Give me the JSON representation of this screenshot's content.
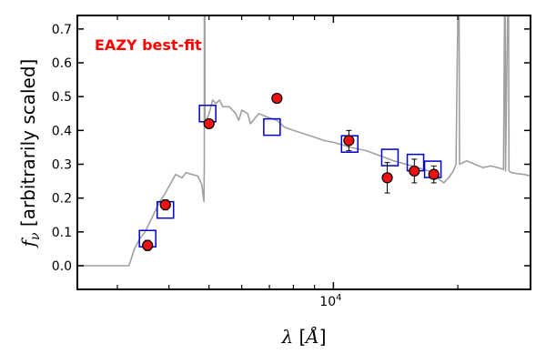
{
  "chart_data": {
    "type": "scatter",
    "title": "",
    "xlabel": "λ [Å]",
    "ylabel": "f_ν [arbitrarily scaled]",
    "x_scale": "log",
    "xlim": [
      2400,
      30000
    ],
    "ylim": [
      -0.07,
      0.74
    ],
    "x_tick_labels": [
      {
        "value": 10000,
        "label": "10^4"
      }
    ],
    "y_ticks": [
      0.0,
      0.1,
      0.2,
      0.3,
      0.4,
      0.5,
      0.6,
      0.7
    ],
    "y_tick_labels": [
      "0.0",
      "0.1",
      "0.2",
      "0.3",
      "0.4",
      "0.5",
      "0.6",
      "0.7"
    ],
    "grid": false,
    "annotations": [
      {
        "text": "EAZY best-fit",
        "color": "#ff0000"
      }
    ],
    "colors": {
      "template": "#a0a0a0",
      "model": "#0000cc",
      "observed_fill": "#ee1111",
      "observed_edge": "#000000"
    },
    "series": [
      {
        "role": "template",
        "style": "line",
        "points": [
          [
            2400,
            0.0
          ],
          [
            3200,
            0.0
          ],
          [
            3300,
            0.05
          ],
          [
            3400,
            0.08
          ],
          [
            3500,
            0.1
          ],
          [
            3600,
            0.13
          ],
          [
            3700,
            0.16
          ],
          [
            3800,
            0.19
          ],
          [
            3900,
            0.21
          ],
          [
            4000,
            0.235
          ],
          [
            4150,
            0.27
          ],
          [
            4300,
            0.26
          ],
          [
            4400,
            0.275
          ],
          [
            4550,
            0.27
          ],
          [
            4700,
            0.265
          ],
          [
            4800,
            0.24
          ],
          [
            4860,
            0.19
          ],
          [
            4870,
            0.3
          ],
          [
            4870,
            0.74
          ],
          [
            4885,
            0.74
          ],
          [
            4890,
            0.42
          ],
          [
            5000,
            0.45
          ],
          [
            5100,
            0.49
          ],
          [
            5200,
            0.48
          ],
          [
            5300,
            0.49
          ],
          [
            5400,
            0.47
          ],
          [
            5600,
            0.47
          ],
          [
            5800,
            0.45
          ],
          [
            5900,
            0.43
          ],
          [
            6000,
            0.46
          ],
          [
            6200,
            0.45
          ],
          [
            6300,
            0.42
          ],
          [
            6600,
            0.45
          ],
          [
            6900,
            0.44
          ],
          [
            7300,
            0.43
          ],
          [
            7600,
            0.41
          ],
          [
            8000,
            0.4
          ],
          [
            8500,
            0.39
          ],
          [
            9000,
            0.38
          ],
          [
            9500,
            0.37
          ],
          [
            10000,
            0.365
          ],
          [
            11000,
            0.35
          ],
          [
            12000,
            0.34
          ],
          [
            13000,
            0.325
          ],
          [
            14000,
            0.31
          ],
          [
            15000,
            0.3
          ],
          [
            16000,
            0.29
          ],
          [
            17000,
            0.28
          ],
          [
            17800,
            0.26
          ],
          [
            18500,
            0.245
          ],
          [
            19000,
            0.26
          ],
          [
            19500,
            0.28
          ],
          [
            19800,
            0.3
          ],
          [
            20000,
            0.74
          ],
          [
            20150,
            0.74
          ],
          [
            20200,
            0.3
          ],
          [
            21000,
            0.31
          ],
          [
            22000,
            0.3
          ],
          [
            23000,
            0.29
          ],
          [
            24000,
            0.295
          ],
          [
            25000,
            0.29
          ],
          [
            25800,
            0.285
          ],
          [
            25950,
            0.74
          ],
          [
            26050,
            0.74
          ],
          [
            26100,
            0.28
          ],
          [
            26400,
            0.74
          ],
          [
            26550,
            0.74
          ],
          [
            26600,
            0.28
          ],
          [
            27000,
            0.275
          ],
          [
            28000,
            0.272
          ],
          [
            29000,
            0.27
          ],
          [
            30000,
            0.265
          ]
        ]
      },
      {
        "role": "model_photometry",
        "style": "open-square",
        "points": [
          [
            3550,
            0.08
          ],
          [
            3920,
            0.165
          ],
          [
            4960,
            0.45
          ],
          [
            7100,
            0.41
          ],
          [
            10950,
            0.36
          ],
          [
            13700,
            0.32
          ],
          [
            15800,
            0.305
          ],
          [
            17400,
            0.285
          ]
        ]
      },
      {
        "role": "observed_photometry",
        "style": "filled-circle-errorbar",
        "points": [
          {
            "x": 3550,
            "y": 0.06,
            "yerr": 0.015
          },
          {
            "x": 3920,
            "y": 0.18,
            "yerr": 0.015
          },
          {
            "x": 5000,
            "y": 0.42,
            "yerr": 0.012
          },
          {
            "x": 7300,
            "y": 0.495,
            "yerr": 0.01
          },
          {
            "x": 10900,
            "y": 0.37,
            "yerr": 0.03
          },
          {
            "x": 13500,
            "y": 0.26,
            "yerr": 0.045
          },
          {
            "x": 15700,
            "y": 0.28,
            "yerr": 0.035
          },
          {
            "x": 17500,
            "y": 0.27,
            "yerr": 0.025
          }
        ]
      }
    ]
  }
}
